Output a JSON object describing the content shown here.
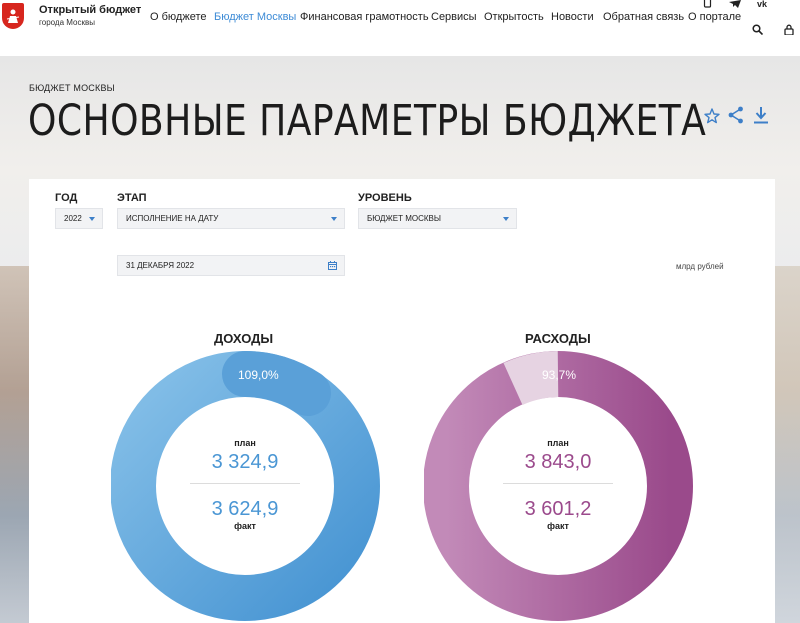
{
  "header": {
    "logo_title": "Открытый бюджет",
    "logo_subtitle": "города Москвы",
    "nav": [
      "О бюджете",
      "Бюджет Москвы",
      "Финансовая грамотность",
      "Сервисы",
      "Открытость",
      "Новости",
      "Обратная связь",
      "О портале"
    ],
    "active_nav": "Бюджет Москвы"
  },
  "breadcrumb": "БЮДЖЕТ МОСКВЫ",
  "page_title": "ОСНОВНЫЕ ПАРАМЕТРЫ БЮДЖЕТА",
  "filters": {
    "year_label": "ГОД",
    "year_value": "2022",
    "stage_label": "ЭТАП",
    "stage_value": "ИСПОЛНЕНИЕ НА ДАТУ",
    "level_label": "УРОВЕНЬ",
    "level_value": "БЮДЖЕТ МОСКВЫ",
    "date_value": "31 ДЕКАБРЯ 2022"
  },
  "units": "млрд рублей",
  "income": {
    "title": "ДОХОДЫ",
    "percent": "109,0%",
    "plan_label": "план",
    "plan_value": "3 324,9",
    "fact_value": "3 624,9",
    "fact_label": "факт"
  },
  "expense": {
    "title": "РАСХОДЫ",
    "percent": "93,7%",
    "plan_label": "план",
    "plan_value": "3 843,0",
    "fact_value": "3 601,2",
    "fact_label": "факт"
  },
  "colors": {
    "accent_blue": "#3d8bd6",
    "income_ring": "#5aa5dc",
    "expense_ring": "#a65797",
    "logo_red": "#d7261e"
  },
  "icons": [
    "phone-icon",
    "telegram-icon",
    "vk-icon",
    "search-icon",
    "user-lock-icon",
    "star-icon",
    "share-icon",
    "download-icon",
    "calendar-icon"
  ]
}
